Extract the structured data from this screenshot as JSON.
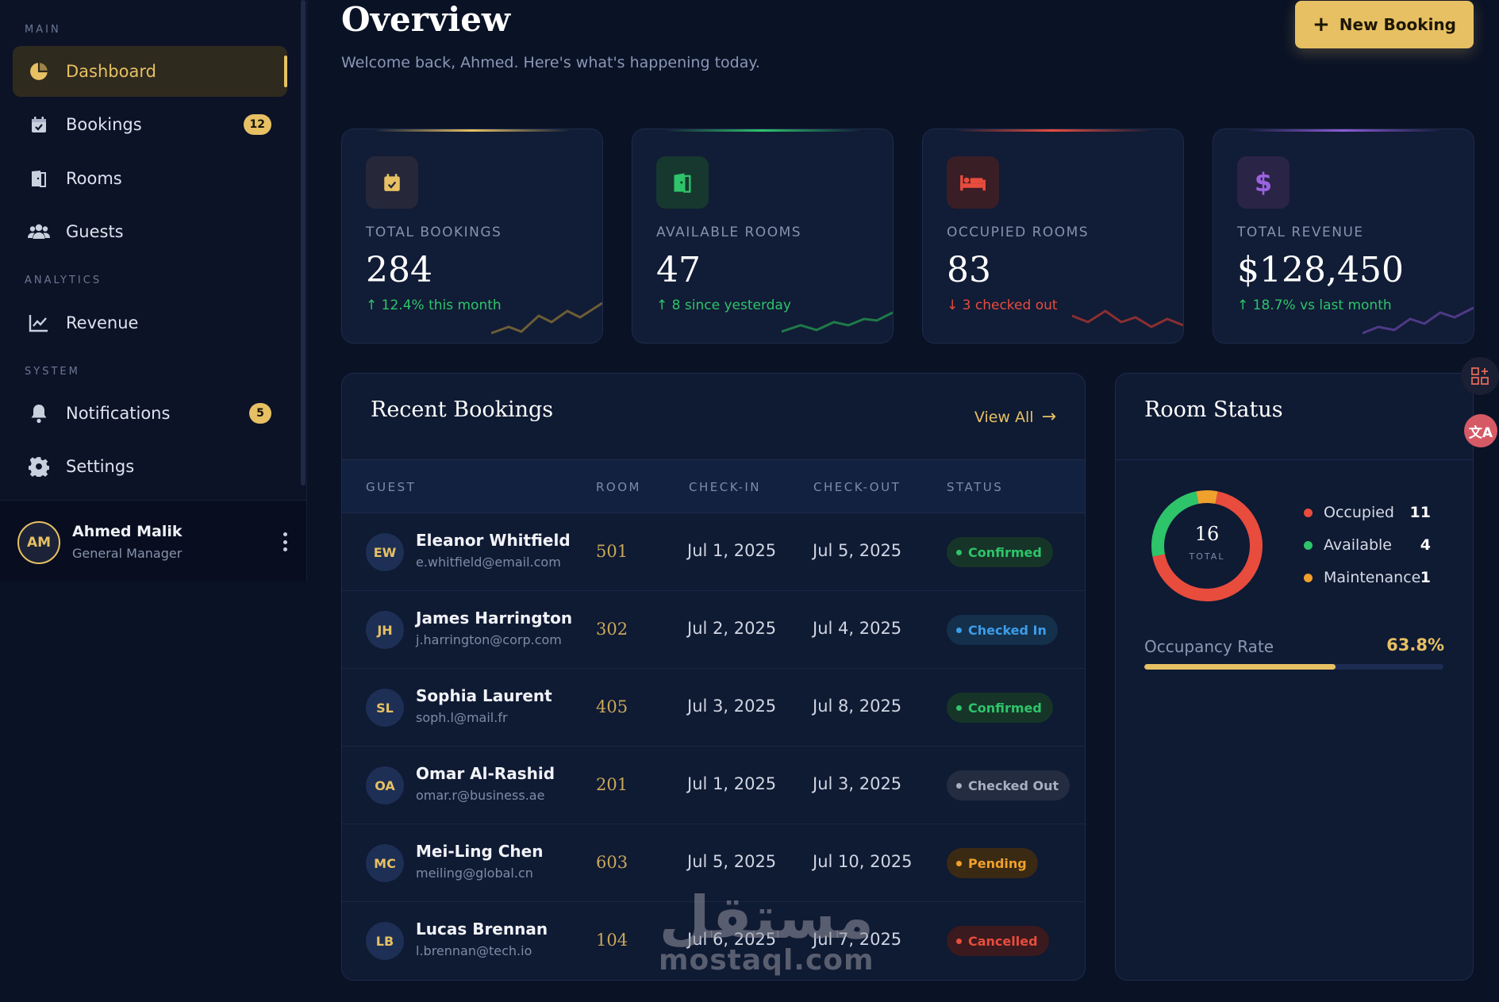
{
  "sidebar": {
    "sections": {
      "main": "MAIN",
      "analytics": "ANALYTICS",
      "system": "SYSTEM"
    },
    "items": [
      {
        "label": "Dashboard",
        "icon": "pie-chart-icon"
      },
      {
        "label": "Bookings",
        "icon": "calendar-check-icon",
        "badge": "12"
      },
      {
        "label": "Rooms",
        "icon": "door-icon"
      },
      {
        "label": "Guests",
        "icon": "users-icon"
      },
      {
        "label": "Revenue",
        "icon": "line-chart-icon"
      },
      {
        "label": "Notifications",
        "icon": "bell-icon",
        "badge": "5"
      },
      {
        "label": "Settings",
        "icon": "gear-icon"
      }
    ],
    "user": {
      "initials": "AM",
      "name": "Ahmed Malik",
      "role": "General Manager"
    }
  },
  "header": {
    "title": "Overview",
    "subtitle": "Welcome back, Ahmed. Here's what's happening today.",
    "new_booking": "New Booking"
  },
  "stats": [
    {
      "label": "TOTAL BOOKINGS",
      "value": "284",
      "delta": "12.4% this month",
      "trend": "up",
      "accent": "#e6c063",
      "icon": "calendar-check-icon"
    },
    {
      "label": "AVAILABLE ROOMS",
      "value": "47",
      "delta": "8 since yesterday",
      "trend": "up",
      "accent": "#2ec46a",
      "icon": "door-icon"
    },
    {
      "label": "OCCUPIED ROOMS",
      "value": "83",
      "delta": "3 checked out",
      "trend": "down",
      "accent": "#e84c3d",
      "icon": "bed-icon"
    },
    {
      "label": "TOTAL REVENUE",
      "value": "$128,450",
      "delta": "18.7% vs last month",
      "trend": "up",
      "accent": "#8e5bd8",
      "icon": "dollar-icon"
    }
  ],
  "bookings": {
    "title": "Recent Bookings",
    "view_all": "View All",
    "columns": [
      "GUEST",
      "ROOM",
      "CHECK-IN",
      "CHECK-OUT",
      "STATUS"
    ],
    "rows": [
      {
        "initials": "EW",
        "name": "Eleanor Whitfield",
        "email": "e.whitfield@email.com",
        "room": "501",
        "check_in": "Jul 1, 2025",
        "check_out": "Jul 5, 2025",
        "status": "Confirmed"
      },
      {
        "initials": "JH",
        "name": "James Harrington",
        "email": "j.harrington@corp.com",
        "room": "302",
        "check_in": "Jul 2, 2025",
        "check_out": "Jul 4, 2025",
        "status": "Checked In"
      },
      {
        "initials": "SL",
        "name": "Sophia Laurent",
        "email": "soph.l@mail.fr",
        "room": "405",
        "check_in": "Jul 3, 2025",
        "check_out": "Jul 8, 2025",
        "status": "Confirmed"
      },
      {
        "initials": "OA",
        "name": "Omar Al-Rashid",
        "email": "omar.r@business.ae",
        "room": "201",
        "check_in": "Jul 1, 2025",
        "check_out": "Jul 3, 2025",
        "status": "Checked Out"
      },
      {
        "initials": "MC",
        "name": "Mei-Ling Chen",
        "email": "meiling@global.cn",
        "room": "603",
        "check_in": "Jul 5, 2025",
        "check_out": "Jul 10, 2025",
        "status": "Pending"
      },
      {
        "initials": "LB",
        "name": "Lucas Brennan",
        "email": "l.brennan@tech.io",
        "room": "104",
        "check_in": "Jul 6, 2025",
        "check_out": "Jul 7, 2025",
        "status": "Cancelled"
      }
    ]
  },
  "status_colors": {
    "Confirmed": {
      "fg": "#2ec46a",
      "bg": "#163528"
    },
    "Checked In": {
      "fg": "#3b9dea",
      "bg": "#15304b"
    },
    "Checked Out": {
      "fg": "#a7afc0",
      "bg": "#232c40"
    },
    "Pending": {
      "fg": "#f0a02c",
      "bg": "#3a2a14"
    },
    "Cancelled": {
      "fg": "#e84c3d",
      "bg": "#3a1a1e"
    }
  },
  "room_status": {
    "title": "Room Status",
    "total": "16",
    "total_label": "TOTAL",
    "legend": [
      {
        "label": "Occupied",
        "value": "11",
        "color": "#e84c3d"
      },
      {
        "label": "Available",
        "value": "4",
        "color": "#2ec46a"
      },
      {
        "label": "Maintenance",
        "value": "1",
        "color": "#f0a02c"
      }
    ],
    "occupancy_label": "Occupancy Rate",
    "occupancy_value": "63.8%",
    "occupancy_fraction": 0.638
  },
  "watermark": {
    "arabic": "مستقل",
    "latin": "mostaql.com"
  }
}
